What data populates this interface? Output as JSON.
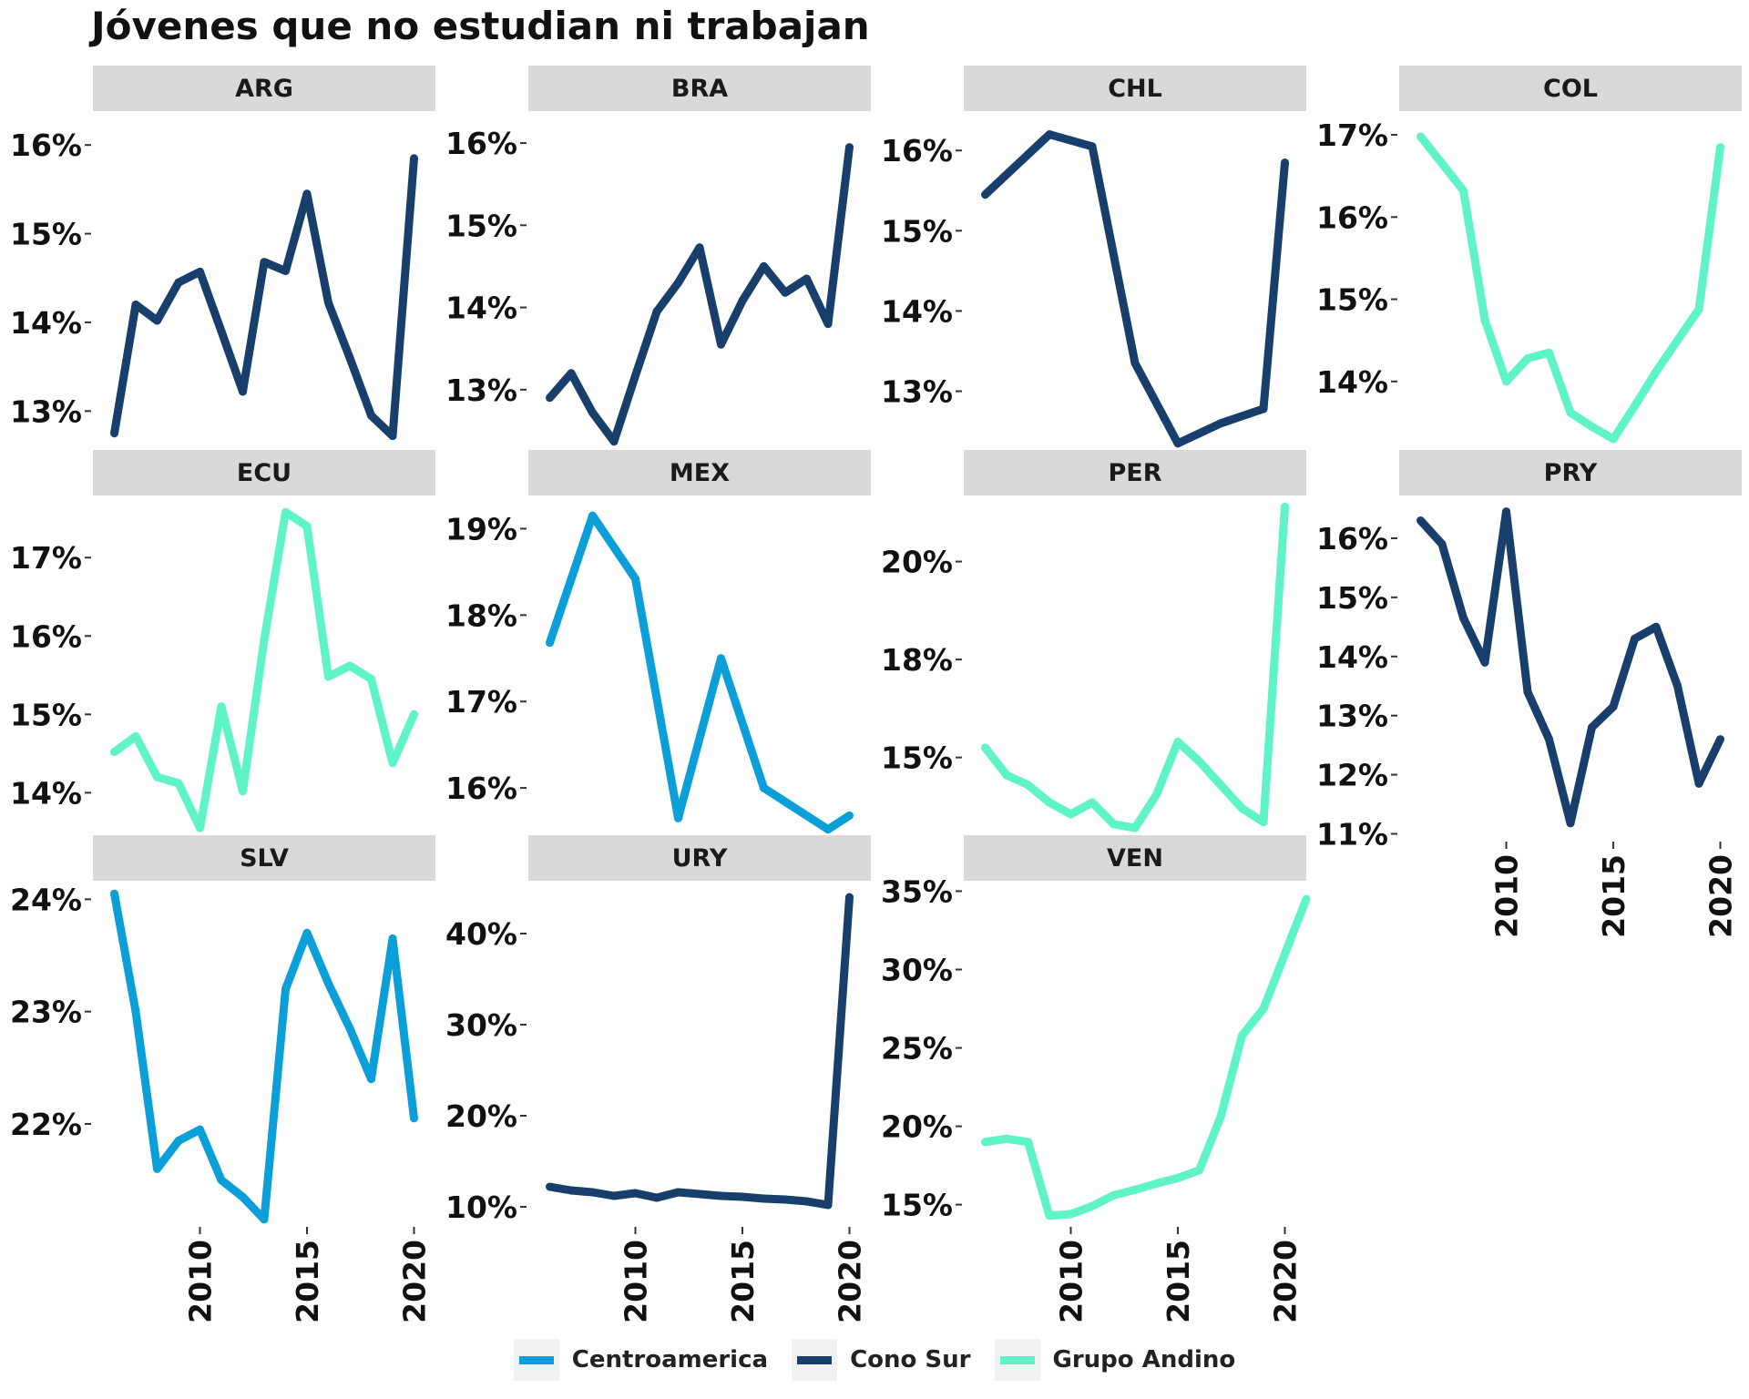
{
  "title": "Jóvenes que no estudian ni trabajan",
  "colors": {
    "Centroamerica": "#0a9fd8",
    "Cono Sur": "#183f6b",
    "Grupo Andino": "#5ff3c8",
    "strip": "#d9d9d9"
  },
  "legend": [
    {
      "label": "Centroamerica",
      "group": "Centroamerica"
    },
    {
      "label": "Cono Sur",
      "group": "Cono Sur"
    },
    {
      "label": "Grupo Andino",
      "group": "Grupo Andino"
    }
  ],
  "chart_data": {
    "type": "line",
    "title": "Jóvenes que no estudian ni trabajan",
    "xlabel": "",
    "ylabel": "",
    "x_axis": {
      "range": [
        2005,
        2021
      ],
      "ticks": [
        2010,
        2015,
        2020
      ],
      "tick_labels": [
        "2010",
        "2015",
        "2020"
      ]
    },
    "legend_position": "bottom",
    "grid": false,
    "panels": [
      {
        "label": "ARG",
        "group": "Cono Sur",
        "ylim": [
          12.5,
          16.3
        ],
        "yticks": [
          13,
          14,
          15,
          16
        ],
        "ytick_labels": [
          "13%",
          "14%",
          "15%",
          "16%"
        ],
        "x": [
          2006,
          2007,
          2008,
          2009,
          2010,
          2011,
          2012,
          2013,
          2014,
          2015,
          2016,
          2017,
          2018,
          2019,
          2020
        ],
        "y": [
          12.75,
          14.2,
          14.02,
          14.45,
          14.57,
          13.9,
          13.22,
          14.68,
          14.58,
          15.45,
          14.22,
          13.6,
          12.95,
          12.72,
          15.85
        ]
      },
      {
        "label": "BRA",
        "group": "Cono Sur",
        "ylim": [
          12.2,
          16.3
        ],
        "yticks": [
          13,
          14,
          15,
          16
        ],
        "ytick_labels": [
          "13%",
          "14%",
          "15%",
          "16%"
        ],
        "x": [
          2006,
          2007,
          2008,
          2009,
          2010,
          2011,
          2012,
          2013,
          2014,
          2015,
          2016,
          2017,
          2018,
          2019,
          2020
        ],
        "y": [
          12.9,
          13.2,
          12.72,
          12.37,
          13.17,
          13.95,
          14.3,
          14.73,
          13.55,
          14.08,
          14.5,
          14.18,
          14.35,
          13.8,
          15.95
        ]
      },
      {
        "label": "CHL",
        "group": "Cono Sur",
        "ylim": [
          12.2,
          16.4
        ],
        "yticks": [
          13,
          14,
          15,
          16
        ],
        "ytick_labels": [
          "13%",
          "14%",
          "15%",
          "16%"
        ],
        "x": [
          2006,
          2009,
          2011,
          2013,
          2015,
          2017,
          2019,
          2020
        ],
        "y": [
          15.45,
          16.2,
          16.05,
          13.35,
          12.35,
          12.6,
          12.78,
          15.85
        ]
      },
      {
        "label": "COL",
        "group": "Grupo Andino",
        "ylim": [
          13.1,
          17.2
        ],
        "yticks": [
          14,
          15,
          16,
          17
        ],
        "ytick_labels": [
          "14%",
          "15%",
          "16%",
          "17%"
        ],
        "x": [
          2006,
          2007,
          2008,
          2009,
          2010,
          2011,
          2012,
          2013,
          2014,
          2015,
          2016,
          2017,
          2018,
          2019,
          2020
        ],
        "y": [
          16.98,
          16.65,
          16.32,
          14.75,
          14.0,
          14.28,
          14.35,
          13.62,
          13.45,
          13.3,
          13.7,
          14.12,
          14.5,
          14.88,
          16.85
        ]
      },
      {
        "label": "ECU",
        "group": "Grupo Andino",
        "ylim": [
          13.4,
          17.7
        ],
        "yticks": [
          14,
          15,
          16,
          17
        ],
        "ytick_labels": [
          "14%",
          "15%",
          "16%",
          "17%"
        ],
        "x": [
          2006,
          2007,
          2008,
          2009,
          2010,
          2011,
          2012,
          2013,
          2014,
          2015,
          2016,
          2017,
          2018,
          2019,
          2020
        ],
        "y": [
          14.52,
          14.72,
          14.2,
          14.12,
          13.55,
          15.1,
          14.02,
          15.95,
          17.58,
          17.4,
          15.48,
          15.62,
          15.45,
          14.38,
          15.0
        ]
      },
      {
        "label": "MEX",
        "group": "Centroamerica",
        "ylim": [
          15.4,
          19.3
        ],
        "yticks": [
          16,
          17,
          18,
          19
        ],
        "ytick_labels": [
          "16%",
          "17%",
          "18%",
          "19%"
        ],
        "x": [
          2006,
          2008,
          2010,
          2012,
          2014,
          2016,
          2019,
          2020
        ],
        "y": [
          17.68,
          19.15,
          18.42,
          15.65,
          17.5,
          16.0,
          15.52,
          15.68
        ]
      },
      {
        "label": "PER",
        "group": "Grupo Andino",
        "ylim": [
          12.9,
          21.5
        ],
        "yticks": [
          15,
          17.5,
          20
        ],
        "ytick_labels": [
          "15%",
          "18%",
          "20%"
        ],
        "x": [
          2006,
          2007,
          2008,
          2009,
          2010,
          2011,
          2012,
          2013,
          2014,
          2015,
          2016,
          2017,
          2018,
          2019,
          2020
        ],
        "y": [
          15.25,
          14.55,
          14.3,
          13.85,
          13.55,
          13.85,
          13.3,
          13.2,
          14.05,
          15.4,
          14.9,
          14.3,
          13.7,
          13.35,
          21.4
        ]
      },
      {
        "label": "PRY",
        "group": "Cono Sur",
        "ylim": [
          10.9,
          16.6
        ],
        "yticks": [
          11,
          12,
          13,
          14,
          15,
          16
        ],
        "ytick_labels": [
          "11%",
          "12%",
          "13%",
          "14%",
          "15%",
          "16%"
        ],
        "x": [
          2006,
          2007,
          2008,
          2009,
          2010,
          2011,
          2012,
          2013,
          2014,
          2015,
          2016,
          2017,
          2018,
          2019,
          2020
        ],
        "y": [
          16.3,
          15.9,
          14.65,
          13.9,
          16.45,
          13.4,
          12.6,
          11.18,
          12.8,
          13.15,
          14.3,
          14.5,
          13.5,
          11.85,
          12.6
        ]
      },
      {
        "label": "SLV",
        "group": "Centroamerica",
        "ylim": [
          21.1,
          24.1
        ],
        "yticks": [
          22,
          23,
          24
        ],
        "ytick_labels": [
          "22%",
          "23%",
          "24%"
        ],
        "x": [
          2006,
          2007,
          2008,
          2009,
          2010,
          2011,
          2012,
          2013,
          2014,
          2015,
          2016,
          2017,
          2018,
          2019,
          2020
        ],
        "y": [
          24.05,
          23.0,
          21.6,
          21.85,
          21.95,
          21.5,
          21.35,
          21.15,
          23.2,
          23.7,
          23.25,
          22.85,
          22.4,
          23.65,
          22.05
        ]
      },
      {
        "label": "URY",
        "group": "Cono Sur",
        "ylim": [
          8.0,
          45.0
        ],
        "yticks": [
          10,
          20,
          30,
          40
        ],
        "ytick_labels": [
          "10%",
          "20%",
          "30%",
          "40%"
        ],
        "x": [
          2006,
          2007,
          2008,
          2009,
          2010,
          2011,
          2012,
          2013,
          2014,
          2015,
          2016,
          2017,
          2018,
          2019,
          2020
        ],
        "y": [
          12.2,
          11.8,
          11.6,
          11.2,
          11.5,
          11.0,
          11.6,
          11.4,
          11.2,
          11.1,
          10.9,
          10.8,
          10.6,
          10.2,
          44.0
        ]
      },
      {
        "label": "VEN",
        "group": "Grupo Andino",
        "ylim": [
          13.7,
          35.2
        ],
        "yticks": [
          15,
          20,
          25,
          30,
          35
        ],
        "ytick_labels": [
          "15%",
          "20%",
          "25%",
          "30%",
          "35%"
        ],
        "x": [
          2006,
          2007,
          2008,
          2009,
          2010,
          2011,
          2012,
          2013,
          2014,
          2015,
          2016,
          2017,
          2018,
          2019,
          2020,
          2021
        ],
        "y": [
          19.0,
          19.2,
          19.0,
          14.3,
          14.4,
          14.9,
          15.6,
          15.95,
          16.35,
          16.7,
          17.2,
          20.6,
          25.8,
          27.5,
          31.0,
          34.5
        ]
      }
    ]
  }
}
